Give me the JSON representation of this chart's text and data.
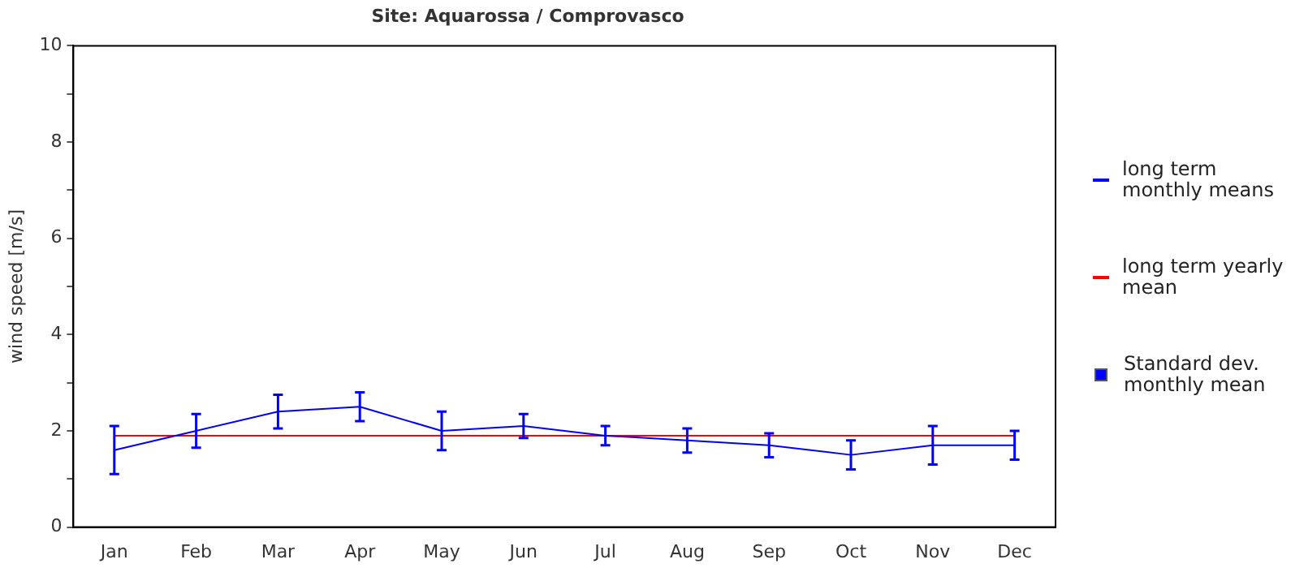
{
  "chart_data": {
    "type": "line",
    "title": "Site: Aquarossa / Comprovasco",
    "ylabel": "wind speed [m/s]",
    "categories": [
      "Jan",
      "Feb",
      "Mar",
      "Apr",
      "May",
      "Jun",
      "Jul",
      "Aug",
      "Sep",
      "Oct",
      "Nov",
      "Dec"
    ],
    "series": [
      {
        "name": "long term monthly means",
        "color": "#0000ff",
        "values": [
          1.6,
          2.0,
          2.4,
          2.5,
          2.0,
          2.1,
          1.9,
          1.8,
          1.7,
          1.5,
          1.7,
          1.7
        ],
        "errors": [
          0.5,
          0.35,
          0.35,
          0.3,
          0.4,
          0.25,
          0.2,
          0.25,
          0.25,
          0.3,
          0.4,
          0.3
        ]
      },
      {
        "name": "long term yearly mean",
        "color": "#ff0000",
        "values": [
          1.9,
          1.9,
          1.9,
          1.9,
          1.9,
          1.9,
          1.9,
          1.9,
          1.9,
          1.9,
          1.9,
          1.9
        ]
      }
    ],
    "annotations": [
      "Standard dev. monthly mean"
    ],
    "ylim": [
      0,
      10
    ],
    "yticks": [
      0,
      {
        "value": 1,
        "label": null
      },
      2,
      {
        "value": 3,
        "label": null
      },
      4,
      {
        "value": 5,
        "label": null
      },
      6,
      {
        "value": 7,
        "label": null
      },
      8,
      {
        "value": 9,
        "label": null
      },
      10
    ],
    "grid": false,
    "legend": "right",
    "marker": "none",
    "line_style": "solid"
  }
}
